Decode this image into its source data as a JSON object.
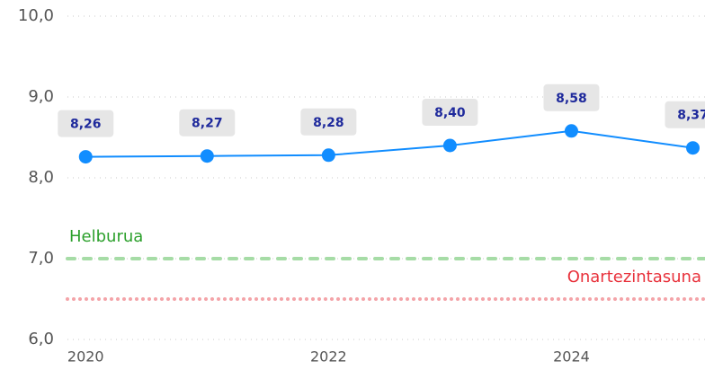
{
  "chart_data": {
    "type": "line",
    "x": [
      2020,
      2021,
      2022,
      2023,
      2024,
      2025
    ],
    "values": [
      8.26,
      8.27,
      8.28,
      8.4,
      8.58,
      8.37
    ],
    "value_labels": [
      "8,26",
      "8,27",
      "8,28",
      "8,40",
      "8,58",
      "8,37"
    ],
    "color": "#118dff",
    "xlim": [
      2019.85,
      2025.1
    ],
    "xticks": [
      2020,
      2022,
      2024
    ],
    "ylim": [
      6,
      10
    ],
    "yticks": [
      {
        "value": 6,
        "label": "6,0"
      },
      {
        "value": 7,
        "label": "7,0"
      },
      {
        "value": 8,
        "label": "8,0"
      },
      {
        "value": 9,
        "label": "9,0"
      },
      {
        "value": 10,
        "label": "10,0"
      }
    ],
    "grid": true,
    "reference_lines": [
      {
        "label": "Helburua",
        "value": 7,
        "color": "#a6dca6",
        "label_color": "#2ca02c",
        "style": "dashed",
        "label_side": "left"
      },
      {
        "label": "Onartezintasuna",
        "value": 6.5,
        "color": "#f4a3a8",
        "label_color": "#e8323c",
        "style": "dotted",
        "label_side": "right"
      }
    ]
  }
}
